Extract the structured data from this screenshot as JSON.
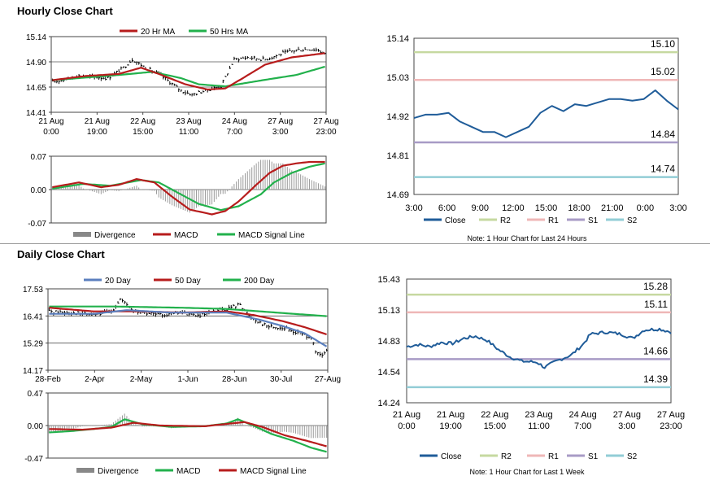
{
  "sections": {
    "hourly_title": "Hourly Close Chart",
    "daily_title": "Daily Close Chart"
  },
  "colors": {
    "red": "#b71c1c",
    "green": "#22b14c",
    "blue": "#5b7fbe",
    "dark_blue": "#1f5c99",
    "gray": "#888888",
    "pale_green": "#c6d9a0",
    "pale_red": "#efb7b7",
    "purple": "#a89bc6",
    "teal": "#92cdd6"
  },
  "chart_data": [
    {
      "id": "hourly-ma",
      "type": "line",
      "legend": [
        {
          "label": "20 Hr MA",
          "color": "#b71c1c"
        },
        {
          "label": "50 Hrs MA",
          "color": "#22b14c"
        }
      ],
      "y_ticks": [
        "15.14",
        "14.90",
        "14.65",
        "14.41"
      ],
      "ylim": [
        14.41,
        15.14
      ],
      "x_ticks": [
        [
          "21 Aug",
          "0:00"
        ],
        [
          "21 Aug",
          "19:00"
        ],
        [
          "22 Aug",
          "15:00"
        ],
        [
          "23 Aug",
          "11:00"
        ],
        [
          "24 Aug",
          "7:00"
        ],
        [
          "27 Aug",
          "3:00"
        ],
        [
          "27 Aug",
          "23:00"
        ]
      ],
      "n": 124,
      "close_keys": [
        [
          0,
          14.7
        ],
        [
          12,
          14.76
        ],
        [
          25,
          14.74
        ],
        [
          32,
          14.84
        ],
        [
          36,
          14.92
        ],
        [
          42,
          14.84
        ],
        [
          48,
          14.78
        ],
        [
          53,
          14.7
        ],
        [
          58,
          14.62
        ],
        [
          63,
          14.58
        ],
        [
          69,
          14.62
        ],
        [
          76,
          14.66
        ],
        [
          82,
          14.92
        ],
        [
          88,
          14.94
        ],
        [
          96,
          14.92
        ],
        [
          104,
          14.98
        ],
        [
          110,
          15.01
        ],
        [
          116,
          15.02
        ],
        [
          120,
          15.01
        ],
        [
          123,
          14.97
        ]
      ],
      "ma20_keys": [
        [
          0,
          14.72
        ],
        [
          15,
          14.76
        ],
        [
          30,
          14.78
        ],
        [
          40,
          14.84
        ],
        [
          48,
          14.78
        ],
        [
          60,
          14.68
        ],
        [
          70,
          14.63
        ],
        [
          78,
          14.64
        ],
        [
          86,
          14.74
        ],
        [
          96,
          14.87
        ],
        [
          108,
          14.94
        ],
        [
          123,
          14.98
        ]
      ],
      "ma50_keys": [
        [
          0,
          14.72
        ],
        [
          30,
          14.77
        ],
        [
          45,
          14.8
        ],
        [
          58,
          14.74
        ],
        [
          66,
          14.68
        ],
        [
          78,
          14.66
        ],
        [
          95,
          14.72
        ],
        [
          110,
          14.77
        ],
        [
          123,
          14.85
        ]
      ]
    },
    {
      "id": "hourly-macd",
      "type": "line",
      "legend": [
        {
          "label": "Divergence",
          "color": "#888888"
        },
        {
          "label": "MACD",
          "color": "#b71c1c"
        },
        {
          "label": "MACD Signal Line",
          "color": "#22b14c"
        }
      ],
      "y_ticks": [
        "0.07",
        "0.00",
        "-0.07"
      ],
      "ylim": [
        -0.07,
        0.07
      ],
      "n": 124,
      "macd_keys": [
        [
          0,
          0.005
        ],
        [
          12,
          0.015
        ],
        [
          22,
          0.005
        ],
        [
          30,
          0.01
        ],
        [
          38,
          0.022
        ],
        [
          46,
          0.015
        ],
        [
          54,
          -0.015
        ],
        [
          62,
          -0.042
        ],
        [
          72,
          -0.052
        ],
        [
          78,
          -0.045
        ],
        [
          84,
          -0.025
        ],
        [
          92,
          0.01
        ],
        [
          98,
          0.035
        ],
        [
          104,
          0.05
        ],
        [
          110,
          0.055
        ],
        [
          116,
          0.058
        ],
        [
          123,
          0.058
        ]
      ],
      "signal_keys": [
        [
          0,
          0.002
        ],
        [
          14,
          0.012
        ],
        [
          26,
          0.008
        ],
        [
          40,
          0.02
        ],
        [
          48,
          0.015
        ],
        [
          58,
          -0.01
        ],
        [
          66,
          -0.03
        ],
        [
          76,
          -0.043
        ],
        [
          84,
          -0.035
        ],
        [
          94,
          -0.01
        ],
        [
          100,
          0.015
        ],
        [
          108,
          0.035
        ],
        [
          116,
          0.048
        ],
        [
          123,
          0.055
        ]
      ]
    },
    {
      "id": "hourly-levels",
      "type": "line",
      "legend": [
        {
          "label": "Close",
          "color": "#1f5c99"
        },
        {
          "label": "R2",
          "color": "#c6d9a0"
        },
        {
          "label": "R1",
          "color": "#efb7b7"
        },
        {
          "label": "S1",
          "color": "#a89bc6"
        },
        {
          "label": "S2",
          "color": "#92cdd6"
        }
      ],
      "y_ticks": [
        "15.14",
        "15.03",
        "14.92",
        "14.81",
        "14.69"
      ],
      "ylim": [
        14.69,
        15.14
      ],
      "x_ticks": [
        "3:00",
        "6:00",
        "9:00",
        "12:00",
        "15:00",
        "18:00",
        "21:00",
        "0:00",
        "3:00"
      ],
      "levels": [
        {
          "name": "R2",
          "value": 15.1,
          "label": "15.10"
        },
        {
          "name": "R1",
          "value": 15.02,
          "label": "15.02"
        },
        {
          "name": "S1",
          "value": 14.84,
          "label": "14.84"
        },
        {
          "name": "S2",
          "value": 14.74,
          "label": "14.74"
        }
      ],
      "close": [
        14.91,
        14.92,
        14.92,
        14.925,
        14.9,
        14.885,
        14.87,
        14.87,
        14.855,
        14.87,
        14.885,
        14.925,
        14.945,
        14.93,
        14.95,
        14.945,
        14.955,
        14.965,
        14.965,
        14.96,
        14.965,
        14.99,
        14.96,
        14.935
      ],
      "note": "Note: 1 Hour Chart for Last 24 Hours"
    },
    {
      "id": "daily-ma",
      "type": "line",
      "legend": [
        {
          "label": "20 Day",
          "color": "#5b7fbe"
        },
        {
          "label": "50 Day",
          "color": "#b71c1c"
        },
        {
          "label": "200 Day",
          "color": "#22b14c"
        }
      ],
      "y_ticks": [
        "17.53",
        "16.41",
        "15.29",
        "14.17"
      ],
      "ylim": [
        14.17,
        17.53
      ],
      "x_ticks": [
        "28-Feb",
        "2-Apr",
        "2-May",
        "1-Jun",
        "28-Jun",
        "30-Jul",
        "27-Aug"
      ],
      "n": 126,
      "close_keys": [
        [
          0,
          16.6
        ],
        [
          10,
          16.55
        ],
        [
          20,
          16.45
        ],
        [
          28,
          16.6
        ],
        [
          32,
          17.1
        ],
        [
          38,
          16.6
        ],
        [
          50,
          16.45
        ],
        [
          60,
          16.55
        ],
        [
          68,
          16.4
        ],
        [
          75,
          16.6
        ],
        [
          80,
          16.7
        ],
        [
          86,
          16.9
        ],
        [
          90,
          16.4
        ],
        [
          98,
          16.0
        ],
        [
          106,
          15.9
        ],
        [
          112,
          15.7
        ],
        [
          118,
          15.55
        ],
        [
          120,
          14.9
        ],
        [
          123,
          14.75
        ],
        [
          125,
          15.0
        ]
      ],
      "ma20_keys": [
        [
          0,
          16.5
        ],
        [
          20,
          16.5
        ],
        [
          35,
          16.65
        ],
        [
          55,
          16.55
        ],
        [
          80,
          16.55
        ],
        [
          95,
          16.25
        ],
        [
          105,
          16.0
        ],
        [
          115,
          15.7
        ],
        [
          125,
          15.15
        ]
      ],
      "ma50_keys": [
        [
          0,
          16.75
        ],
        [
          20,
          16.6
        ],
        [
          40,
          16.6
        ],
        [
          60,
          16.55
        ],
        [
          80,
          16.6
        ],
        [
          92,
          16.45
        ],
        [
          105,
          16.2
        ],
        [
          115,
          15.95
        ],
        [
          125,
          15.65
        ]
      ],
      "ma200_keys": [
        [
          0,
          16.8
        ],
        [
          30,
          16.8
        ],
        [
          60,
          16.75
        ],
        [
          80,
          16.7
        ],
        [
          95,
          16.6
        ],
        [
          110,
          16.5
        ],
        [
          125,
          16.4
        ]
      ]
    },
    {
      "id": "daily-macd",
      "type": "line",
      "legend": [
        {
          "label": "Divergence",
          "color": "#888888"
        },
        {
          "label": "MACD",
          "color": "#22b14c"
        },
        {
          "label": "MACD Signal Line",
          "color": "#b71c1c"
        }
      ],
      "y_ticks": [
        "0.47",
        "0.00",
        "-0.47"
      ],
      "ylim": [
        -0.47,
        0.47
      ],
      "n": 126,
      "macd_keys": [
        [
          0,
          -0.1
        ],
        [
          10,
          -0.08
        ],
        [
          20,
          -0.05
        ],
        [
          28,
          -0.02
        ],
        [
          34,
          0.09
        ],
        [
          42,
          0.02
        ],
        [
          55,
          -0.02
        ],
        [
          70,
          -0.01
        ],
        [
          80,
          0.03
        ],
        [
          85,
          0.09
        ],
        [
          92,
          0.0
        ],
        [
          100,
          -0.12
        ],
        [
          110,
          -0.22
        ],
        [
          118,
          -0.32
        ],
        [
          125,
          -0.38
        ]
      ],
      "signal_keys": [
        [
          0,
          -0.05
        ],
        [
          15,
          -0.06
        ],
        [
          28,
          -0.03
        ],
        [
          38,
          0.04
        ],
        [
          50,
          0.0
        ],
        [
          70,
          -0.01
        ],
        [
          82,
          0.03
        ],
        [
          88,
          0.05
        ],
        [
          96,
          -0.02
        ],
        [
          106,
          -0.14
        ],
        [
          116,
          -0.22
        ],
        [
          125,
          -0.3
        ]
      ]
    },
    {
      "id": "daily-levels",
      "type": "line",
      "legend": [
        {
          "label": "Close",
          "color": "#1f5c99"
        },
        {
          "label": "R2",
          "color": "#c6d9a0"
        },
        {
          "label": "R1",
          "color": "#efb7b7"
        },
        {
          "label": "S1",
          "color": "#a89bc6"
        },
        {
          "label": "S2",
          "color": "#92cdd6"
        }
      ],
      "y_ticks": [
        "15.43",
        "15.13",
        "14.83",
        "14.54",
        "14.24"
      ],
      "ylim": [
        14.24,
        15.43
      ],
      "x_ticks": [
        [
          "21 Aug",
          "0:00"
        ],
        [
          "21 Aug",
          "19:00"
        ],
        [
          "22 Aug",
          "15:00"
        ],
        [
          "23 Aug",
          "11:00"
        ],
        [
          "24 Aug",
          "7:00"
        ],
        [
          "27 Aug",
          "3:00"
        ],
        [
          "27 Aug",
          "23:00"
        ]
      ],
      "levels": [
        {
          "name": "R2",
          "value": 15.28,
          "label": "15.28"
        },
        {
          "name": "R1",
          "value": 15.11,
          "label": "15.11"
        },
        {
          "name": "S1",
          "value": 14.66,
          "label": "14.66"
        },
        {
          "name": "S2",
          "value": 14.39,
          "label": "14.39"
        }
      ],
      "close_keys": [
        [
          0,
          14.78
        ],
        [
          6,
          14.8
        ],
        [
          12,
          14.78
        ],
        [
          18,
          14.82
        ],
        [
          24,
          14.81
        ],
        [
          30,
          14.86
        ],
        [
          36,
          14.88
        ],
        [
          42,
          14.84
        ],
        [
          48,
          14.75
        ],
        [
          54,
          14.68
        ],
        [
          60,
          14.64
        ],
        [
          68,
          14.63
        ],
        [
          72,
          14.58
        ],
        [
          78,
          14.64
        ],
        [
          86,
          14.7
        ],
        [
          92,
          14.8
        ],
        [
          96,
          14.9
        ],
        [
          104,
          14.92
        ],
        [
          112,
          14.9
        ],
        [
          118,
          14.86
        ],
        [
          124,
          14.94
        ],
        [
          132,
          14.95
        ],
        [
          138,
          14.92
        ]
      ],
      "n": 139,
      "note": "Note: 1 Hour Chart for Last 1 Week"
    }
  ]
}
